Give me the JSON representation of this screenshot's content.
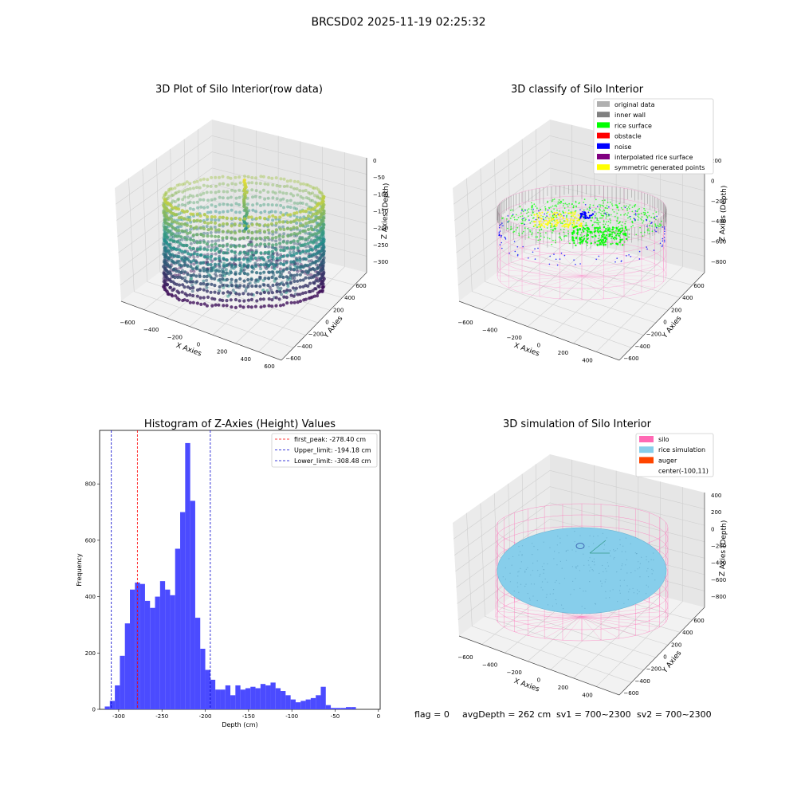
{
  "figure": {
    "title": "BRCSD02 2025-11-19 02:25:32",
    "footer": {
      "flag": "flag = 0",
      "avg_depth": "avgDepth = 262 cm",
      "sv1": "sv1 = 700~2300",
      "sv2": "sv2 = 700~2300"
    }
  },
  "chart_data": [
    {
      "type": "scatter",
      "title": "3D Plot of Silo Interior(row data)",
      "xlabel": "X Axies",
      "ylabel": "Y Axies",
      "zlabel": "Z Axies (Depth)",
      "x_ticks": [
        "−600",
        "−400",
        "−200",
        "0",
        "200",
        "400",
        "600"
      ],
      "y_ticks": [
        "600",
        "400",
        "200",
        "0",
        "−200",
        "−400",
        "−600"
      ],
      "z_ticks": [
        "0",
        "−50",
        "−100",
        "−150",
        "−200",
        "−250",
        "−300"
      ],
      "xlim": [
        -700,
        600
      ],
      "ylim": [
        -650,
        650
      ],
      "zlim": [
        -330,
        0
      ],
      "grid": true,
      "colormap": "viridis",
      "colors": {
        "low": "#440154",
        "mid": "#21918c",
        "high": "#fde725"
      }
    },
    {
      "type": "scatter",
      "title": "3D classify of Silo Interior",
      "xlabel": "X Axies",
      "ylabel": "Y Axies",
      "zlabel": "Z Axies (Depth)",
      "x_ticks": [
        "−600",
        "−400",
        "−200",
        "0",
        "200",
        "400"
      ],
      "y_ticks": [
        "600",
        "400",
        "200",
        "0",
        "−200",
        "−400",
        "−600"
      ],
      "z_ticks": [
        "200",
        "0",
        "−200",
        "−400",
        "−600",
        "−800"
      ],
      "zlim": [
        -950,
        250
      ],
      "grid": true,
      "legend_position": "top-right",
      "legend": [
        {
          "label": "original data",
          "color": "#b0b0b0"
        },
        {
          "label": "inner wall",
          "color": "#808080"
        },
        {
          "label": "rice surface",
          "color": "#00ff00"
        },
        {
          "label": "obstacle",
          "color": "#ff0000"
        },
        {
          "label": "noise",
          "color": "#0000ff"
        },
        {
          "label": "interpolated rice surface",
          "color": "#800080"
        },
        {
          "label": "symmetric generated points",
          "color": "#ffff00"
        }
      ],
      "silo_wire_color": "#ff77c3"
    },
    {
      "type": "bar",
      "title": "Histogram of Z-Axies (Height) Values",
      "xlabel": "Depth (cm)",
      "ylabel": "Frequency",
      "x_ticks": [
        -300,
        -250,
        -200,
        -150,
        -100,
        -50,
        0
      ],
      "y_ticks": [
        0,
        200,
        400,
        600,
        800
      ],
      "xlim": [
        -322,
        2
      ],
      "ylim": [
        0,
        990
      ],
      "bin_start": -316,
      "bin_width": 5.8,
      "values": [
        10,
        30,
        85,
        190,
        305,
        425,
        450,
        445,
        385,
        360,
        400,
        455,
        425,
        405,
        570,
        700,
        945,
        740,
        325,
        215,
        140,
        105,
        70,
        70,
        85,
        50,
        85,
        70,
        75,
        80,
        75,
        90,
        85,
        95,
        75,
        65,
        50,
        35,
        25,
        30,
        35,
        40,
        50,
        80,
        15,
        5,
        5,
        5,
        8,
        8
      ],
      "bar_color": "#4b4bff",
      "legend_position": "top-right",
      "vlines": [
        {
          "label": "first_peak: -278.40 cm",
          "x": -278.4,
          "color": "#ff0000"
        },
        {
          "label": "Upper_limit: -194.18 cm",
          "x": -194.18,
          "color": "#0000cc"
        },
        {
          "label": "Lower_limit: -308.48 cm",
          "x": -308.48,
          "color": "#0000cc"
        }
      ]
    },
    {
      "type": "scatter",
      "title": "3D simulation of Silo Interior",
      "xlabel": "X Axies",
      "ylabel": "Y Axies",
      "zlabel": "Z Axies (Depth)",
      "x_ticks": [
        "−600",
        "−400",
        "−200",
        "0",
        "200",
        "400"
      ],
      "y_ticks": [
        "600",
        "400",
        "200",
        "0",
        "−200",
        "−400",
        "−600"
      ],
      "z_ticks": [
        "400",
        "200",
        "0",
        "−200",
        "−400",
        "−600",
        "−800"
      ],
      "zlim": [
        -950,
        450
      ],
      "grid": true,
      "legend_position": "top-right",
      "legend": [
        {
          "label": "silo",
          "color": "#ff69b4"
        },
        {
          "label": "rice simulation",
          "color": "#87ceeb"
        },
        {
          "label": "auger",
          "color": "#ff4500"
        },
        {
          "label": "center(-100,11)",
          "color": "none"
        }
      ]
    }
  ]
}
